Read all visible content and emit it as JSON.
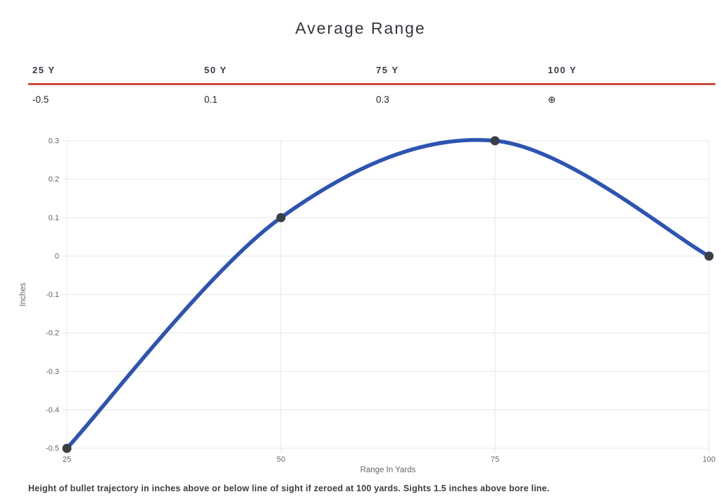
{
  "page": {
    "title": "Average Range",
    "caption": "Height of bullet trajectory in inches above or below line of sight if zeroed at 100 yards. Sights 1.5 inches above bore line."
  },
  "table": {
    "columns": [
      {
        "header": "25 Y",
        "value": "-0.5"
      },
      {
        "header": "50 Y",
        "value": "0.1"
      },
      {
        "header": "75 Y",
        "value": "0.3"
      },
      {
        "header": "100 Y",
        "value": "⊕"
      }
    ]
  },
  "colors": {
    "accent_red": "#cd4a3f",
    "line_blue": "#2d54b2",
    "point_dark": "#3a3e45",
    "grid": "#e7e7e7",
    "tick_text": "#666666",
    "axis_label_text": "#666666",
    "title_text": "#33373d"
  },
  "chart_data": {
    "type": "line",
    "title": "Average Range",
    "x": [
      25,
      50,
      75,
      100
    ],
    "y": [
      -0.5,
      0.1,
      0.3,
      0
    ],
    "xlabel": "Range In Yards",
    "ylabel": "Inches",
    "xlim": [
      25,
      100
    ],
    "ylim": [
      -0.5,
      0.3
    ],
    "x_ticks": [
      "25",
      "50",
      "75",
      "100"
    ],
    "y_ticks": [
      "0.3",
      "0.2",
      "0.1",
      "0",
      "-0.1",
      "-0.2",
      "-0.3",
      "-0.4",
      "-0.5"
    ],
    "grid": true,
    "legend_position": "none",
    "curve": "smooth"
  }
}
